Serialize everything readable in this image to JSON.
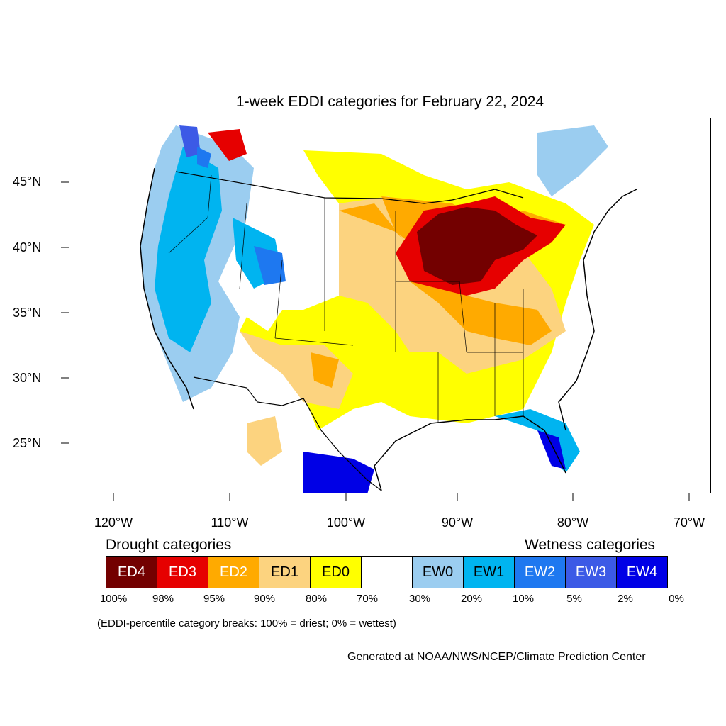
{
  "title": "1-week EDDI categories for February 22, 2024",
  "map": {
    "lat_labels": [
      "45°N",
      "40°N",
      "35°N",
      "30°N",
      "25°N"
    ],
    "lon_labels": [
      "120°W",
      "110°W",
      "100°W",
      "90°W",
      "80°W",
      "70°W"
    ]
  },
  "legend": {
    "drought_heading": "Drought categories",
    "wetness_heading": "Wetness categories",
    "categories": [
      {
        "label": "ED4",
        "color": "#730000",
        "text_color": "#ffffff"
      },
      {
        "label": "ED3",
        "color": "#e60000",
        "text_color": "#ffffff"
      },
      {
        "label": "ED2",
        "color": "#ffaa00",
        "text_color": "#ffffff"
      },
      {
        "label": "ED1",
        "color": "#fcd37f",
        "text_color": "#000000"
      },
      {
        "label": "ED0",
        "color": "#ffff00",
        "text_color": "#000000"
      },
      {
        "label": "",
        "color": "#ffffff",
        "text_color": "#000000"
      },
      {
        "label": "EW0",
        "color": "#9bcdf0",
        "text_color": "#000000"
      },
      {
        "label": "EW1",
        "color": "#00b4f0",
        "text_color": "#000000"
      },
      {
        "label": "EW2",
        "color": "#1e78f0",
        "text_color": "#ffffff"
      },
      {
        "label": "EW3",
        "color": "#3c5ae6",
        "text_color": "#ffffff"
      },
      {
        "label": "EW4",
        "color": "#0000e6",
        "text_color": "#ffffff"
      }
    ],
    "percentiles": [
      "100%",
      "98%",
      "95%",
      "90%",
      "80%",
      "70%",
      "30%",
      "20%",
      "10%",
      "5%",
      "2%",
      "0%"
    ]
  },
  "note": "(EDDI-percentile category breaks: 100% = driest; 0% = wettest)",
  "credit": "Generated at NOAA/NWS/NCEP/Climate Prediction Center"
}
